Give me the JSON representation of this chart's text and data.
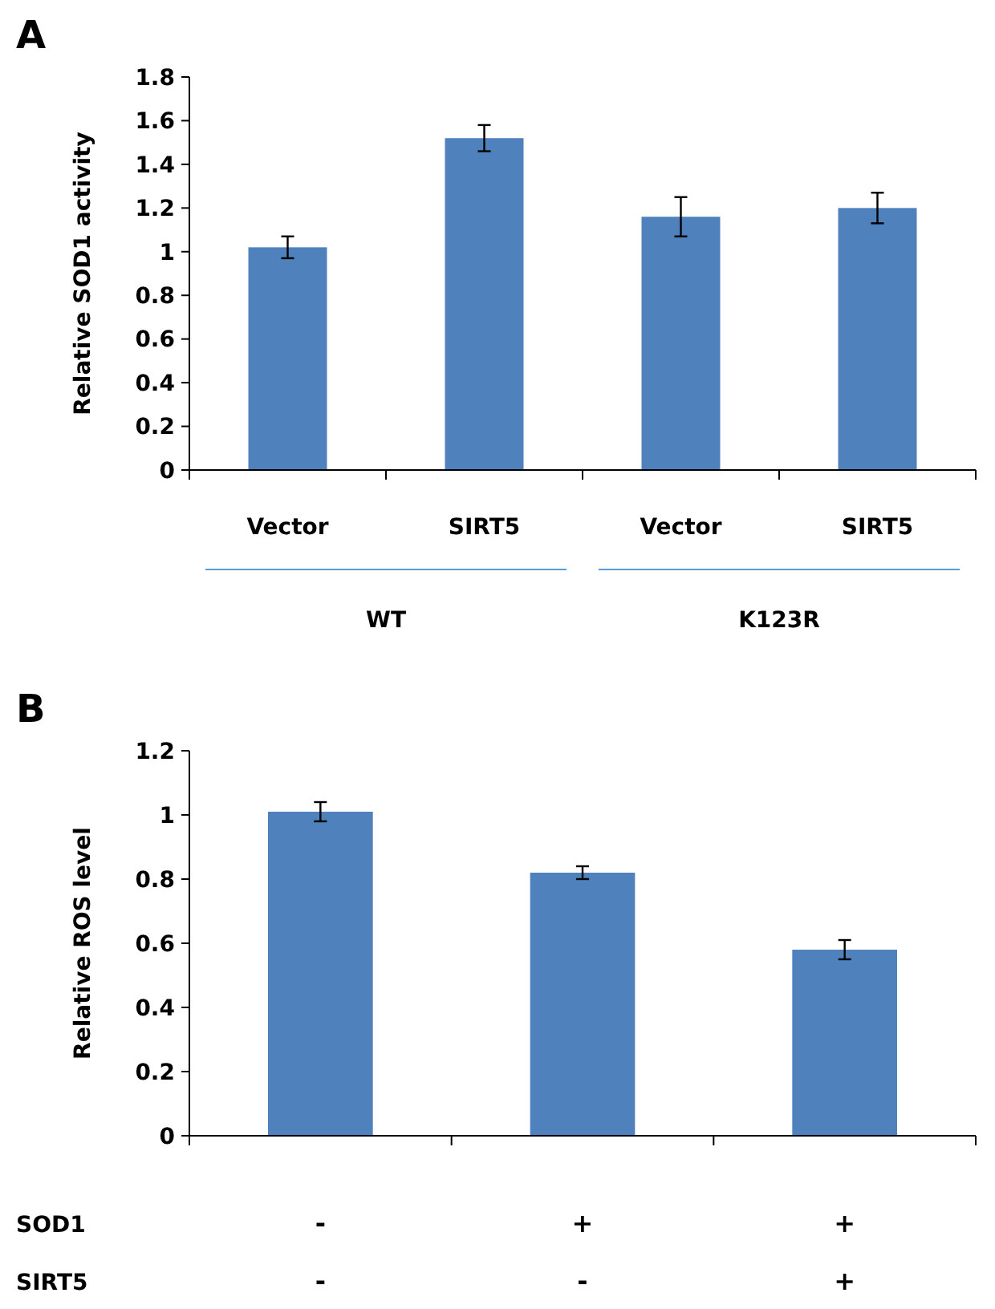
{
  "chart_data": [
    {
      "type": "bar",
      "title": "A",
      "ylabel": "Relative SOD1 activity",
      "categories": [
        "Vector",
        "SIRT5",
        "Vector",
        "SIRT5"
      ],
      "values": [
        1.02,
        1.52,
        1.16,
        1.2
      ],
      "errors": [
        0.05,
        0.06,
        0.09,
        0.07
      ],
      "color": "#4f81bd",
      "ylim": [
        0,
        1.8
      ],
      "yticks": [
        0,
        0.2,
        0.4,
        0.6,
        0.8,
        1,
        1.2,
        1.4,
        1.6,
        1.8
      ],
      "annotations": [
        "WT",
        "K123R"
      ]
    },
    {
      "type": "bar",
      "title": "B",
      "ylabel": "Relative ROS level",
      "categories": [
        "-",
        "+",
        "+"
      ],
      "values": [
        1.01,
        0.82,
        0.58
      ],
      "errors": [
        0.03,
        0.02,
        0.03
      ],
      "color": "#4f81bd",
      "ylim": [
        0,
        1.2
      ],
      "yticks": [
        0,
        0.2,
        0.4,
        0.6,
        0.8,
        1,
        1.2
      ],
      "annotations": [
        "SOD1",
        "SIRT5",
        "-",
        "-",
        "+"
      ]
    }
  ]
}
